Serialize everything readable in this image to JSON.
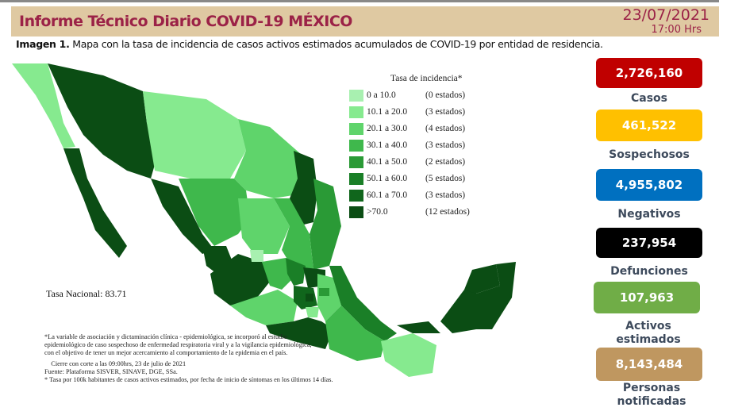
{
  "header": {
    "title": "Informe Técnico Diario COVID-19 MÉXICO",
    "date": "23/07/2021",
    "time": "17:00 Hrs"
  },
  "caption": {
    "label": "Imagen 1.",
    "text": " Mapa con la tasa de incidencia de casos activos estimados acumulados de COVID-19 por entidad de residencia."
  },
  "legend": {
    "title": "Tasa de incidencia*",
    "items": [
      {
        "range": "0   a  10.0",
        "count": "(0 estados)",
        "color": "#a8f0b0"
      },
      {
        "range": "10.1 a 20.0",
        "count": "(3 estados)",
        "color": "#86ea8f"
      },
      {
        "range": "20.1 a  30.0",
        "count": "(4 estados)",
        "color": "#5fd46b"
      },
      {
        "range": "30.1 a  40.0",
        "count": "(3 estados)",
        "color": "#3fb84c"
      },
      {
        "range": "40.1 a  50.0",
        "count": "(2 estados)",
        "color": "#2a9a36"
      },
      {
        "range": "50.1 a  60.0",
        "count": "(5 estados)",
        "color": "#1a7f27"
      },
      {
        "range": "60.1 a  70.0",
        "count": "(3 estados)",
        "color": "#10661c"
      },
      {
        "range": ">70.0",
        "count": "(12 estados)",
        "color": "#0b4d14"
      }
    ]
  },
  "tasa_nacional": "Tasa Nacional: 83.71",
  "notes": [
    "*La variable de asociación y dictaminación clínica - epidemiológica, se incorporó al estudio",
    "epidemiológico de caso sospechoso de enfermedad respiratoria viral y a la vigilancia epidemiológica,",
    "con el objetivo de tener un mejor acercamiento al comportamiento de la epidemia en el país.",
    "    Cierre con corte a las 09:00hrs, 23 de julio de 2021",
    "Fuente: Plataforma SISVER, SINAVE, DGE, SSa.",
    "* Tasa por 100k habitantes de casos activos estimados, por fecha de inicio de síntomas en los últimos 14 días."
  ],
  "stats": [
    {
      "value": "2,726,160",
      "label": "Casos",
      "color": "#c00000"
    },
    {
      "value": "461,522",
      "label": "Sospechosos",
      "color": "#ffc000"
    },
    {
      "value": "4,955,802",
      "label": "Negativos",
      "color": "#0070c0"
    },
    {
      "value": "237,954",
      "label": "Defunciones",
      "color": "#000000"
    },
    {
      "value": "107,963",
      "label": "Activos estimados",
      "color": "#70ad47"
    },
    {
      "value": "8,143,484",
      "label": "Personas notificadas",
      "color": "#bf9760"
    }
  ]
}
